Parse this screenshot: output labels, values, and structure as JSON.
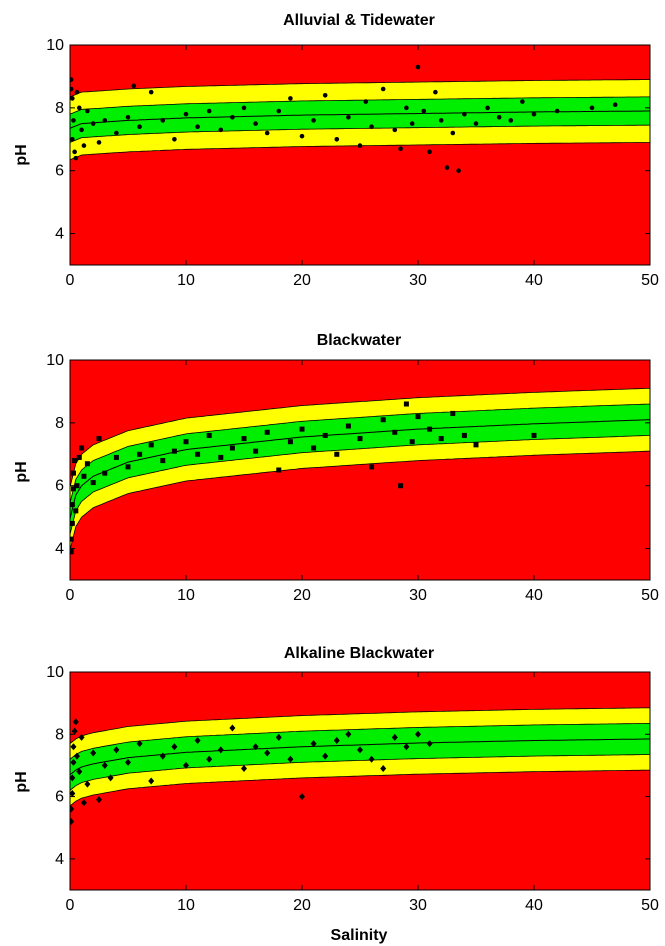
{
  "figure": {
    "xlabel": "Salinity"
  },
  "colors": {
    "outside": "#ff0000",
    "outer_band": "#ffff00",
    "inner_band": "#00ee00",
    "points": "#000000"
  },
  "chart_data": [
    {
      "type": "scatter",
      "title": "Alluvial & Tidewater",
      "xlabel": "",
      "ylabel": "pH",
      "xlim": [
        0,
        50
      ],
      "ylim": [
        3,
        10
      ],
      "xticks": [
        "0",
        "10",
        "20",
        "30",
        "40",
        "50"
      ],
      "yticks": [
        "4",
        "6",
        "8",
        "10"
      ],
      "marker": "dot",
      "grid": false,
      "bands": {
        "center": [
          [
            0,
            7.35
          ],
          [
            1,
            7.5
          ],
          [
            5,
            7.6
          ],
          [
            10,
            7.68
          ],
          [
            20,
            7.77
          ],
          [
            30,
            7.82
          ],
          [
            40,
            7.87
          ],
          [
            50,
            7.9
          ]
        ],
        "inner_halfwidth": 0.45,
        "outer_halfwidth": 1.0
      },
      "points": [
        [
          0.1,
          8.9
        ],
        [
          0.1,
          8.6
        ],
        [
          0.2,
          8.3
        ],
        [
          0.3,
          7.6
        ],
        [
          0.2,
          7.0
        ],
        [
          0.4,
          6.6
        ],
        [
          0.5,
          6.4
        ],
        [
          0.6,
          8.5
        ],
        [
          0.8,
          8.0
        ],
        [
          1.0,
          7.3
        ],
        [
          1.2,
          6.8
        ],
        [
          1.5,
          7.9
        ],
        [
          2,
          7.5
        ],
        [
          2.5,
          6.9
        ],
        [
          3,
          7.6
        ],
        [
          4,
          7.2
        ],
        [
          5,
          7.7
        ],
        [
          5.5,
          8.7
        ],
        [
          6,
          7.4
        ],
        [
          7,
          8.5
        ],
        [
          8,
          7.6
        ],
        [
          9,
          7.0
        ],
        [
          10,
          7.8
        ],
        [
          11,
          7.4
        ],
        [
          12,
          7.9
        ],
        [
          13,
          7.3
        ],
        [
          14,
          7.7
        ],
        [
          15,
          8.0
        ],
        [
          16,
          7.5
        ],
        [
          17,
          7.2
        ],
        [
          18,
          7.9
        ],
        [
          19,
          8.3
        ],
        [
          20,
          7.1
        ],
        [
          21,
          7.6
        ],
        [
          22,
          8.4
        ],
        [
          23,
          7.0
        ],
        [
          24,
          7.7
        ],
        [
          25,
          6.8
        ],
        [
          25.5,
          8.2
        ],
        [
          26,
          7.4
        ],
        [
          27,
          8.6
        ],
        [
          28,
          7.3
        ],
        [
          28.5,
          6.7
        ],
        [
          29,
          8.0
        ],
        [
          29.5,
          7.5
        ],
        [
          30,
          9.3
        ],
        [
          30.5,
          7.9
        ],
        [
          31,
          6.6
        ],
        [
          31.5,
          8.5
        ],
        [
          32,
          7.6
        ],
        [
          32.5,
          6.1
        ],
        [
          33,
          7.2
        ],
        [
          33.5,
          6.0
        ],
        [
          34,
          7.8
        ],
        [
          35,
          7.5
        ],
        [
          36,
          8.0
        ],
        [
          37,
          7.7
        ],
        [
          38,
          7.6
        ],
        [
          39,
          8.2
        ],
        [
          40,
          7.8
        ],
        [
          42,
          7.9
        ],
        [
          45,
          8.0
        ],
        [
          47,
          8.1
        ]
      ]
    },
    {
      "type": "scatter",
      "title": "Blackwater",
      "xlabel": "",
      "ylabel": "pH",
      "xlim": [
        0,
        50
      ],
      "ylim": [
        3,
        10
      ],
      "xticks": [
        "0",
        "10",
        "20",
        "30",
        "40",
        "50"
      ],
      "yticks": [
        "4",
        "6",
        "8",
        "10"
      ],
      "marker": "square",
      "grid": false,
      "bands": {
        "center": [
          [
            0,
            4.95
          ],
          [
            0.5,
            5.7
          ],
          [
            1,
            6.0
          ],
          [
            2,
            6.3
          ],
          [
            5,
            6.75
          ],
          [
            10,
            7.15
          ],
          [
            20,
            7.55
          ],
          [
            30,
            7.8
          ],
          [
            40,
            7.97
          ],
          [
            50,
            8.1
          ]
        ],
        "inner_halfwidth": 0.5,
        "outer_halfwidth": 1.0
      },
      "points": [
        [
          0.1,
          3.9
        ],
        [
          0.1,
          4.3
        ],
        [
          0.2,
          4.8
        ],
        [
          0.2,
          5.4
        ],
        [
          0.3,
          5.9
        ],
        [
          0.3,
          6.4
        ],
        [
          0.4,
          6.8
        ],
        [
          0.5,
          5.2
        ],
        [
          0.6,
          6.0
        ],
        [
          0.8,
          6.9
        ],
        [
          1.0,
          7.2
        ],
        [
          1.2,
          6.3
        ],
        [
          1.5,
          6.7
        ],
        [
          2,
          6.1
        ],
        [
          2.5,
          7.5
        ],
        [
          3,
          6.4
        ],
        [
          4,
          6.9
        ],
        [
          5,
          6.6
        ],
        [
          6,
          7.0
        ],
        [
          7,
          7.3
        ],
        [
          8,
          6.8
        ],
        [
          9,
          7.1
        ],
        [
          10,
          7.4
        ],
        [
          11,
          7.0
        ],
        [
          12,
          7.6
        ],
        [
          13,
          6.9
        ],
        [
          14,
          7.2
        ],
        [
          15,
          7.5
        ],
        [
          16,
          7.1
        ],
        [
          17,
          7.7
        ],
        [
          18,
          6.5
        ],
        [
          19,
          7.4
        ],
        [
          20,
          7.8
        ],
        [
          21,
          7.2
        ],
        [
          22,
          7.6
        ],
        [
          23,
          7.0
        ],
        [
          24,
          7.9
        ],
        [
          25,
          7.5
        ],
        [
          26,
          6.6
        ],
        [
          27,
          8.1
        ],
        [
          28,
          7.7
        ],
        [
          28.5,
          6.0
        ],
        [
          29,
          8.6
        ],
        [
          29.5,
          7.4
        ],
        [
          30,
          8.2
        ],
        [
          31,
          7.8
        ],
        [
          32,
          7.5
        ],
        [
          33,
          8.3
        ],
        [
          34,
          7.6
        ],
        [
          35,
          7.3
        ],
        [
          40,
          7.6
        ]
      ]
    },
    {
      "type": "scatter",
      "title": "Alkaline Blackwater",
      "xlabel": "Salinity",
      "ylabel": "pH",
      "xlim": [
        0,
        50
      ],
      "ylim": [
        3,
        10
      ],
      "xticks": [
        "0",
        "10",
        "20",
        "30",
        "40",
        "50"
      ],
      "yticks": [
        "4",
        "6",
        "8",
        "10"
      ],
      "marker": "diamond",
      "grid": false,
      "bands": {
        "center": [
          [
            0,
            6.7
          ],
          [
            0.5,
            6.85
          ],
          [
            1,
            6.95
          ],
          [
            2,
            7.05
          ],
          [
            5,
            7.25
          ],
          [
            10,
            7.42
          ],
          [
            20,
            7.6
          ],
          [
            30,
            7.72
          ],
          [
            40,
            7.8
          ],
          [
            50,
            7.85
          ]
        ],
        "inner_halfwidth": 0.5,
        "outer_halfwidth": 1.0
      },
      "points": [
        [
          0.1,
          5.2
        ],
        [
          0.1,
          5.6
        ],
        [
          0.2,
          6.1
        ],
        [
          0.2,
          6.6
        ],
        [
          0.3,
          7.1
        ],
        [
          0.3,
          7.6
        ],
        [
          0.4,
          8.1
        ],
        [
          0.5,
          8.4
        ],
        [
          0.6,
          7.3
        ],
        [
          0.8,
          6.8
        ],
        [
          1.0,
          7.9
        ],
        [
          1.2,
          5.8
        ],
        [
          1.5,
          6.4
        ],
        [
          2,
          7.4
        ],
        [
          2.5,
          5.9
        ],
        [
          3,
          7.0
        ],
        [
          3.5,
          6.6
        ],
        [
          4,
          7.5
        ],
        [
          5,
          7.1
        ],
        [
          6,
          7.7
        ],
        [
          7,
          6.5
        ],
        [
          8,
          7.3
        ],
        [
          9,
          7.6
        ],
        [
          10,
          7.0
        ],
        [
          11,
          7.8
        ],
        [
          12,
          7.2
        ],
        [
          13,
          7.5
        ],
        [
          14,
          8.2
        ],
        [
          15,
          6.9
        ],
        [
          16,
          7.6
        ],
        [
          17,
          7.4
        ],
        [
          18,
          7.9
        ],
        [
          19,
          7.2
        ],
        [
          20,
          6.0
        ],
        [
          21,
          7.7
        ],
        [
          22,
          7.3
        ],
        [
          23,
          7.8
        ],
        [
          24,
          8.0
        ],
        [
          25,
          7.5
        ],
        [
          26,
          7.2
        ],
        [
          27,
          6.9
        ],
        [
          28,
          7.9
        ],
        [
          29,
          7.6
        ],
        [
          30,
          8.0
        ],
        [
          31,
          7.7
        ]
      ]
    }
  ]
}
